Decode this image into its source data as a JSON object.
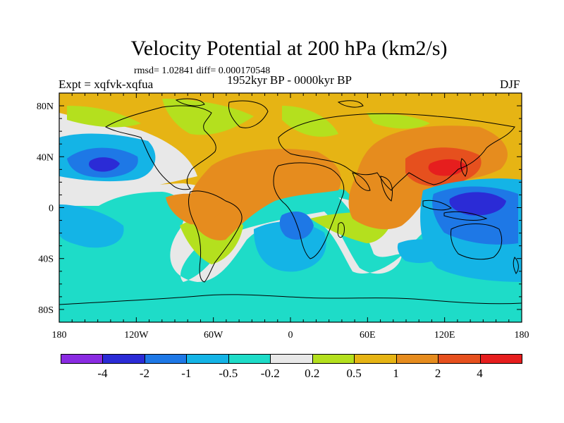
{
  "title": "Velocity Potential at 200 hPa (km2/s)",
  "stats": "rmsd= 1.02841  diff= 0.000170548",
  "left_label": "Expt = xqfvk-xqfua",
  "center_label": "1952kyr BP - 0000kyr BP",
  "right_label": "DJF",
  "map": {
    "lon_ticks": [
      {
        "lon": -180,
        "label": "180"
      },
      {
        "lon": -120,
        "label": "120W"
      },
      {
        "lon": -60,
        "label": "60W"
      },
      {
        "lon": 0,
        "label": "0"
      },
      {
        "lon": 60,
        "label": "60E"
      },
      {
        "lon": 120,
        "label": "120E"
      },
      {
        "lon": 180,
        "label": "180"
      }
    ],
    "lat_ticks": [
      {
        "lat": 80,
        "label": "80N"
      },
      {
        "lat": 40,
        "label": "40N"
      },
      {
        "lat": 0,
        "label": "0"
      },
      {
        "lat": -40,
        "label": "40S"
      },
      {
        "lat": -80,
        "label": "80S"
      }
    ]
  },
  "colorbar": {
    "colors": [
      "#8a2be2",
      "#2b2bd6",
      "#1e78e6",
      "#14b4e6",
      "#1edcc8",
      "#e8e8e8",
      "#b4e01e",
      "#e6b414",
      "#e68c1e",
      "#e6501e",
      "#e61e1e"
    ],
    "labels": [
      "-4",
      "-2",
      "-1",
      "-0.5",
      "-0.2",
      "0.2",
      "0.5",
      "1",
      "2",
      "4"
    ]
  }
}
